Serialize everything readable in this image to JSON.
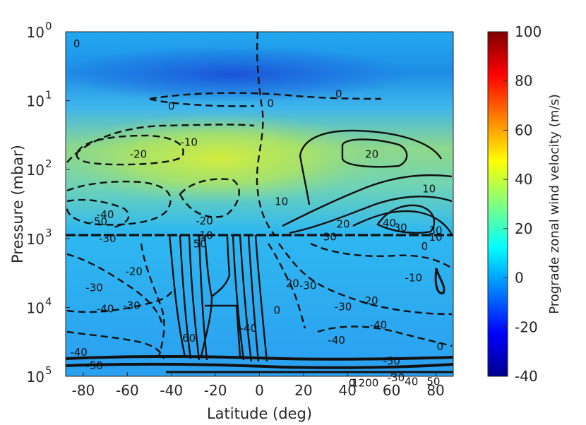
{
  "chart_data": {
    "type": "heatmap",
    "title": "",
    "xlabel": "Latitude (deg)",
    "ylabel": "Pressure (mbar)",
    "colorbar_label": "Prograde zonal wind velocity (m/s)",
    "xlim": [
      -88,
      88
    ],
    "x_ticks": [
      -80,
      -60,
      -40,
      -20,
      0,
      20,
      40,
      60,
      80
    ],
    "x_tick_labels": [
      "-80",
      "-60",
      "-40",
      "-20",
      "0",
      "20",
      "40",
      "60",
      "80"
    ],
    "ylim": [
      1,
      100000
    ],
    "y_scale": "log",
    "y_inverted": true,
    "y_ticks": [
      1,
      10,
      100,
      1000,
      10000,
      100000
    ],
    "y_tick_labels": [
      {
        "base": "10",
        "exp": "0"
      },
      {
        "base": "10",
        "exp": "1"
      },
      {
        "base": "10",
        "exp": "2"
      },
      {
        "base": "10",
        "exp": "3"
      },
      {
        "base": "10",
        "exp": "4"
      },
      {
        "base": "10",
        "exp": "5"
      }
    ],
    "colorbar": {
      "colormap": "jet",
      "min": -40,
      "max": 100,
      "ticks": [
        -40,
        -20,
        0,
        20,
        40,
        60,
        80,
        100
      ],
      "tick_labels": [
        "-40",
        "-20",
        "0",
        "20",
        "40",
        "60",
        "80",
        "100"
      ]
    },
    "background_field": [
      {
        "lat": -85,
        "p": 1,
        "value": 0
      },
      {
        "lat": 0,
        "p": 1,
        "value": -5
      },
      {
        "lat": 85,
        "p": 1,
        "value": 0
      },
      {
        "lat": 0,
        "p": 10,
        "value": -15
      },
      {
        "lat": -60,
        "p": 10,
        "value": 2
      },
      {
        "lat": -40,
        "p": 100,
        "value": 30
      },
      {
        "lat": 0,
        "p": 100,
        "value": 45
      },
      {
        "lat": 45,
        "p": 100,
        "value": 35
      },
      {
        "lat": 0,
        "p": 1000,
        "value": 12
      },
      {
        "lat": 0,
        "p": 10000,
        "value": 5
      },
      {
        "lat": 0,
        "p": 100000,
        "value": 0
      }
    ],
    "contours": [
      {
        "level": -10,
        "style": "dashed",
        "lat": [
          -50,
          -30,
          -10,
          0,
          5
        ],
        "p": [
          20,
          15,
          30,
          100,
          300
        ]
      },
      {
        "level": -20,
        "style": "dashed",
        "lat": [
          -80,
          -65,
          -45,
          -30,
          -45,
          -65,
          -80
        ],
        "p": [
          70,
          35,
          30,
          60,
          120,
          150,
          80
        ]
      },
      {
        "level": -20,
        "style": "dashed",
        "lat": [
          -40,
          -25,
          -10,
          -15,
          -30
        ],
        "p": [
          500,
          250,
          350,
          700,
          800
        ]
      },
      {
        "level": 20,
        "style": "solid",
        "lat": [
          40,
          50,
          65,
          75,
          70,
          55,
          40,
          40
        ],
        "p": [
          60,
          40,
          40,
          65,
          100,
          110,
          95,
          60
        ]
      },
      {
        "level": 10,
        "style": "solid",
        "lat": [
          20,
          30,
          50,
          70,
          85
        ],
        "p": [
          200,
          50,
          20,
          30,
          100
        ]
      },
      {
        "level": 40,
        "style": "solid",
        "lat": [
          45,
          60,
          75,
          80,
          70,
          55,
          45
        ],
        "p": [
          700,
          450,
          500,
          650,
          900,
          850,
          700
        ]
      }
    ],
    "contour_labels": [
      {
        "text": "0",
        "lat": -83,
        "p": 1.5
      },
      {
        "text": "0",
        "lat": 36,
        "p": 8
      },
      {
        "text": "0",
        "lat": 5,
        "p": 11
      },
      {
        "text": "0",
        "lat": -40,
        "p": 12
      },
      {
        "text": "-10",
        "lat": -32,
        "p": 40
      },
      {
        "text": "-20",
        "lat": -55,
        "p": 60
      },
      {
        "text": "20",
        "lat": 51,
        "p": 60
      },
      {
        "text": "10",
        "lat": 77,
        "p": 190
      },
      {
        "text": "10",
        "lat": 10,
        "p": 290
      },
      {
        "text": "-20",
        "lat": -25,
        "p": 560
      },
      {
        "text": "20",
        "lat": 38,
        "p": 620
      },
      {
        "text": "40",
        "lat": 59,
        "p": 600
      },
      {
        "text": "30",
        "lat": 64,
        "p": 700
      },
      {
        "text": "30",
        "lat": 80,
        "p": 770
      },
      {
        "text": "10",
        "lat": 80,
        "p": 960
      },
      {
        "text": "0",
        "lat": 75,
        "p": 1300
      },
      {
        "text": "-40",
        "lat": -70,
        "p": 450
      },
      {
        "text": "-50",
        "lat": -73,
        "p": 570
      },
      {
        "text": "-30",
        "lat": -69,
        "p": 1000
      },
      {
        "text": "30",
        "lat": 32,
        "p": 950
      },
      {
        "text": "-10",
        "lat": -25,
        "p": 900
      },
      {
        "text": "50",
        "lat": -27,
        "p": 1200
      },
      {
        "text": "-30",
        "lat": -75,
        "p": 5200
      },
      {
        "text": "-20",
        "lat": -57,
        "p": 3000
      },
      {
        "text": "20",
        "lat": 15,
        "p": 4500
      },
      {
        "text": "-30",
        "lat": 22,
        "p": 4800
      },
      {
        "text": "-10",
        "lat": 70,
        "p": 3700
      },
      {
        "text": "-20",
        "lat": 50,
        "p": 8000
      },
      {
        "text": "-40",
        "lat": -70,
        "p": 10500
      },
      {
        "text": "-30",
        "lat": -58,
        "p": 9500
      },
      {
        "text": "-30",
        "lat": 38,
        "p": 9800
      },
      {
        "text": "-40",
        "lat": 54,
        "p": 18000
      },
      {
        "text": "0",
        "lat": 8,
        "p": 11000
      },
      {
        "text": "-40",
        "lat": -5,
        "p": 20000
      },
      {
        "text": "-40",
        "lat": 35,
        "p": 30000
      },
      {
        "text": "0",
        "lat": 82,
        "p": 37000
      },
      {
        "text": "-50",
        "lat": 60,
        "p": 60000
      },
      {
        "text": "-50",
        "lat": -75,
        "p": 70000
      },
      {
        "text": "-40",
        "lat": -82,
        "p": 45000
      },
      {
        "text": "60",
        "lat": -32,
        "p": 28000
      },
      {
        "text": "0",
        "lat": 42,
        "p": 125000
      },
      {
        "text": "1200",
        "lat": 48,
        "p": 125000
      },
      {
        "text": "40",
        "lat": 69,
        "p": 120000
      },
      {
        "text": "50",
        "lat": 79,
        "p": 120000
      },
      {
        "text": "-30",
        "lat": 62,
        "p": 105000
      }
    ]
  }
}
